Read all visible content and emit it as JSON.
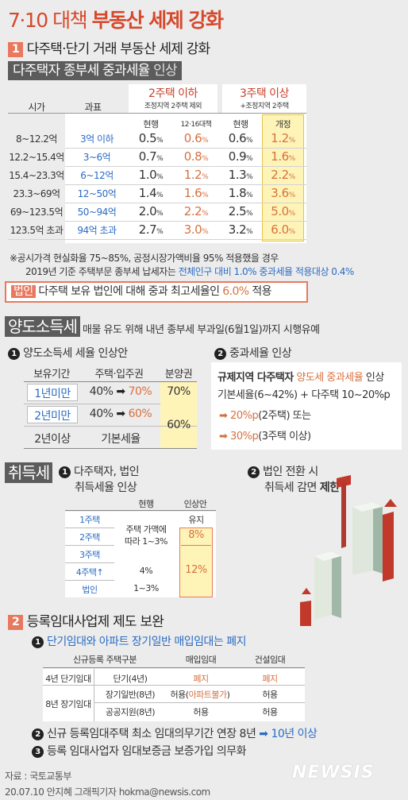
{
  "title": {
    "pre": "7·10 대책",
    "main": "부동산 세제 강화"
  },
  "sec1": {
    "num": "1",
    "heading": "다주택·단기 거래 부동산 세제 강화",
    "bar_bold": "다주택자 종부세 중과세율",
    "bar_thin": "인상",
    "group_a": {
      "title": "2주택 이하",
      "sub": "조정지역 2주택 제외"
    },
    "group_b": {
      "title": "3주택 이상",
      "sub": "+조정지역 2주택"
    },
    "col_siga": "시가",
    "col_gwapyo": "과표",
    "sub_cols": [
      "현행",
      "12·16대책",
      "현행",
      "개정"
    ],
    "rows": [
      {
        "siga": "8~12.2억",
        "gwapyo": "3억 이하",
        "a1": "0.5",
        "a2": "0.6",
        "b1": "0.6",
        "b2": "1.2"
      },
      {
        "siga": "12.2~15.4억",
        "gwapyo": "3~6억",
        "a1": "0.7",
        "a2": "0.8",
        "b1": "0.9",
        "b2": "1.6"
      },
      {
        "siga": "15.4~23.3억",
        "gwapyo": "6~12억",
        "a1": "1.0",
        "a2": "1.2",
        "b1": "1.3",
        "b2": "2.2"
      },
      {
        "siga": "23.3~69억",
        "gwapyo": "12~50억",
        "a1": "1.4",
        "a2": "1.6",
        "b1": "1.8",
        "b2": "3.6"
      },
      {
        "siga": "69~123.5억",
        "gwapyo": "50~94억",
        "a1": "2.0",
        "a2": "2.2",
        "b1": "2.5",
        "b2": "5.0"
      },
      {
        "siga": "123.5억 초과",
        "gwapyo": "94억 초과",
        "a1": "2.7",
        "a2": "3.0",
        "b1": "3.2",
        "b2": "6.0"
      }
    ],
    "pct": "%",
    "note1": "※공시가격 현실화율 75~85%, 공정시장가액비율 95% 적용했을 경우",
    "note2_pre": "2019년 기준 주택부문 종부세 납세자는",
    "note2_hl": "전체인구 대비 1.0% 중과세율 적용대상 0.4%",
    "corp_tag": "법인",
    "corp_text": "다주택 보유 법인에 대해 중과 최고세율인",
    "corp_rate": "6.0%",
    "corp_end": "적용"
  },
  "yangdo": {
    "tag": "양도소득세",
    "note": "매물 유도 위해 내년 종부세 부과일(6월1일)까지 시행유예",
    "sub1": "양도소득세 세율 인상안",
    "sub1_num": "1",
    "cols": [
      "보유기간",
      "주택·입주권",
      "분양권"
    ],
    "r1": {
      "period": "1년미만",
      "from": "40%",
      "to": "70%",
      "bun": "70%"
    },
    "r2": {
      "period": "2년미만",
      "from": "40%",
      "to": "60%",
      "bun": "60%"
    },
    "r3": {
      "period": "2년이상",
      "text": "기본세율"
    },
    "sub2": "중과세율 인상",
    "sub2_num": "2",
    "box_pre": "규제지역 다주택자",
    "box_hl": "양도세 중과세율",
    "box_end": "인상",
    "box_line2": "기본세율(6~42%) + 다주택 10~20%p",
    "box_line3_hl": "20%p",
    "box_line3": "(2주택) 또는",
    "box_line4_hl": "30%p",
    "box_line4": "(3주택 이상)"
  },
  "chwid": {
    "tag": "취득세",
    "sub1_num": "1",
    "sub1_l1": "다주택자, 법인",
    "sub1_l2": "취득세율 인상",
    "col_now": "현행",
    "col_new": "인상안",
    "rows": [
      "1주택",
      "2주택",
      "3주택",
      "4주택↑",
      "법인"
    ],
    "now_a": "주택 가액에",
    "now_b": "따라 1~3%",
    "now_4": "4%",
    "now_corp": "1~3%",
    "new_1": "유지",
    "new_2": "8%",
    "new_3": "12%",
    "sub2_num": "2",
    "sub2_l1": "법인 전환 시",
    "sub2_l2_pre": "취득세 감면",
    "sub2_l2_bold": "제한"
  },
  "sec2": {
    "num": "2",
    "heading": "등록임대사업제 제도 보완",
    "item1_num": "1",
    "item1": "단기임대와 아파트 장기일반 매입임대는 폐지",
    "cols": [
      "신규등록 주택구분",
      "매입임대",
      "건설임대"
    ],
    "rows": [
      {
        "g": "4년 단기임대",
        "t": "단기(4년)",
        "m": "폐지",
        "c": "폐지"
      },
      {
        "g": "8년 장기임대",
        "t": "장기일반(8년)",
        "m_pre": "허용(",
        "m_hl": "아파트불가",
        "m_end": ")",
        "c": "허용"
      },
      {
        "g": "",
        "t": "공공지원(8년)",
        "m": "허용",
        "c": "허용"
      }
    ],
    "item2_num": "2",
    "item2": "신규 등록임대주택 최소 임대의무기간 연장 8년",
    "item2_hl": "10년 이상",
    "item3_num": "3",
    "item3": "등록 임대사업자 임대보증금 보증가입 의무화"
  },
  "footer": {
    "source": "자료 : 국토교통부",
    "credit": "20.07.10 안지혜 그래픽기자 hokma@newsis.com",
    "logo": "NEWSIS"
  },
  "colors": {
    "accent": "#d6482c",
    "blue": "#2b6cc4",
    "orange": "#d6713f",
    "yellow": "#fff4b8",
    "dark": "#5c5c5c"
  }
}
